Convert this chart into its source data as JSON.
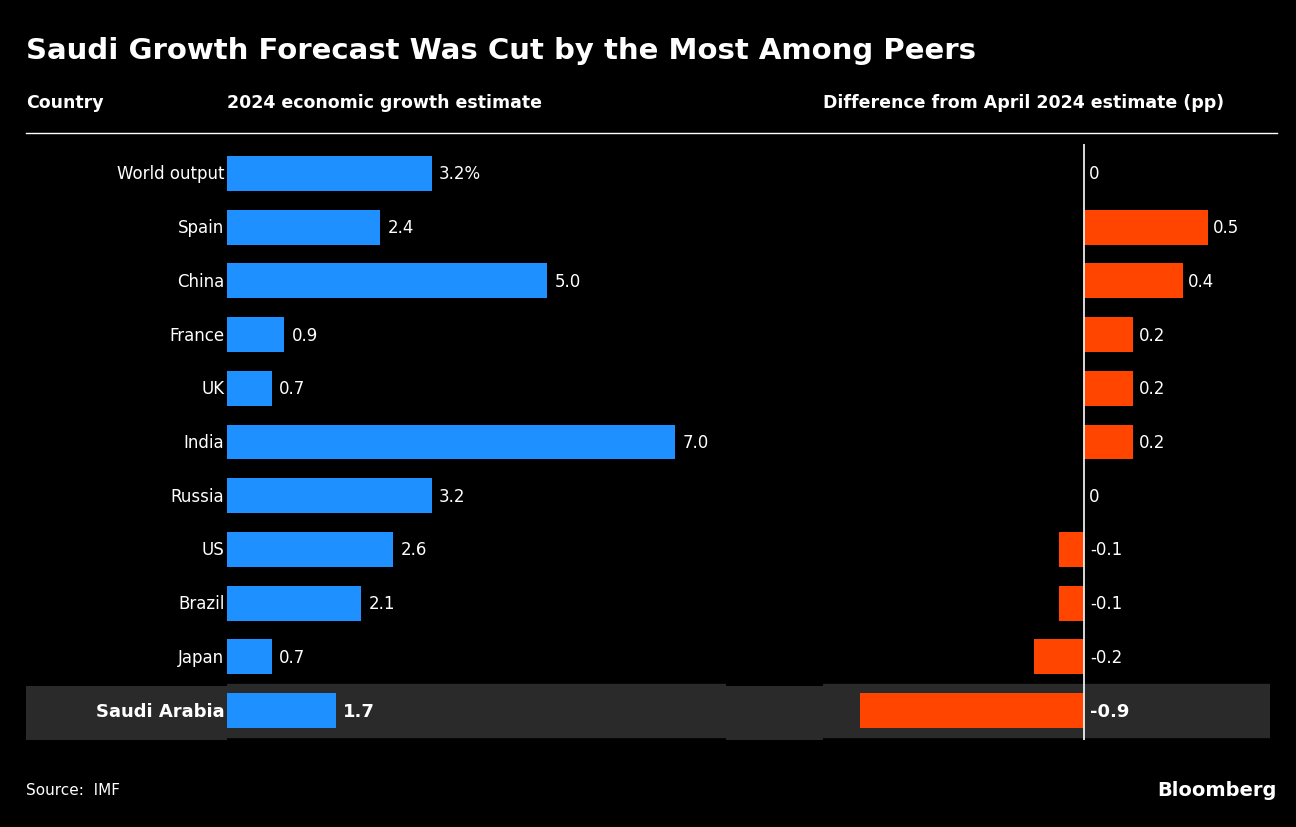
{
  "title": "Saudi Growth Forecast Was Cut by the Most Among Peers",
  "col1_header": "Country",
  "col2_header": "2024 economic growth estimate",
  "col3_header": "Difference from April 2024 estimate (pp)",
  "countries": [
    "World output",
    "Spain",
    "China",
    "France",
    "UK",
    "India",
    "Russia",
    "US",
    "Brazil",
    "Japan",
    "Saudi Arabia"
  ],
  "growth_values": [
    3.2,
    2.4,
    5.0,
    0.9,
    0.7,
    7.0,
    3.2,
    2.6,
    2.1,
    0.7,
    1.7
  ],
  "growth_labels": [
    "3.2%",
    "2.4",
    "5.0",
    "0.9",
    "0.7",
    "7.0",
    "3.2",
    "2.6",
    "2.1",
    "0.7",
    "1.7"
  ],
  "diff_values": [
    0.0,
    0.5,
    0.4,
    0.2,
    0.2,
    0.2,
    0.0,
    -0.1,
    -0.1,
    -0.2,
    -0.9
  ],
  "diff_labels": [
    "0",
    "0.5",
    "0.4",
    "0.2",
    "0.2",
    "0.2",
    "0",
    "-0.1",
    "-0.1",
    "-0.2",
    "-0.9"
  ],
  "blue_color": "#1E90FF",
  "orange_color": "#FF4500",
  "bg_color": "#000000",
  "text_color": "#FFFFFF",
  "highlight_bg": "#2a2a2a",
  "source_text": "Source:  IMF",
  "bloomberg_text": "Bloomberg",
  "growth_xlim": [
    0,
    7.8
  ],
  "diff_xlim": [
    -1.05,
    0.75
  ]
}
